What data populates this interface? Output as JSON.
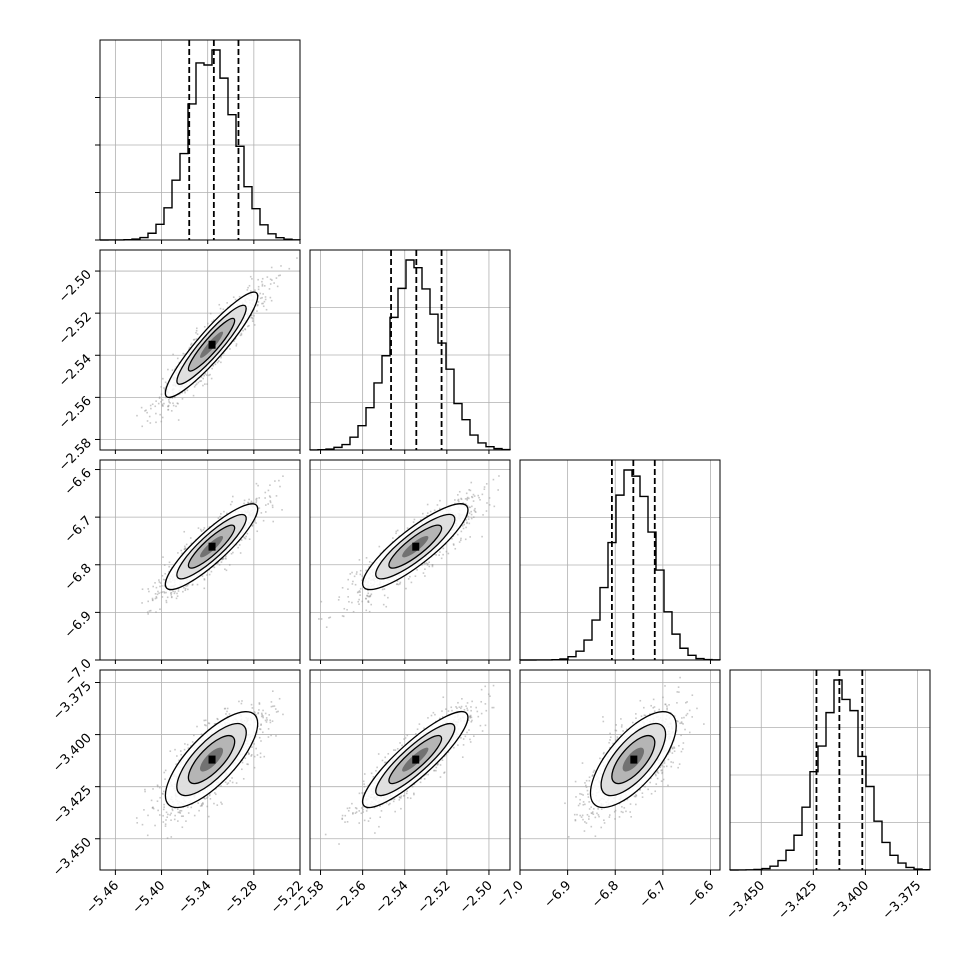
{
  "chart_data": {
    "type": "corner",
    "dimensions": 4,
    "ranges": [
      [
        -5.48,
        -5.22
      ],
      [
        -2.585,
        -2.49
      ],
      [
        -7.0,
        -6.58
      ],
      [
        -3.465,
        -3.369
      ]
    ],
    "tick_labels": [
      [
        "−5.46",
        "−5.40",
        "−5.34",
        "−5.28",
        "−5.22"
      ],
      [
        "−2.58",
        "−2.56",
        "−2.54",
        "−2.52",
        "−2.50"
      ],
      [
        "−7.0",
        "−6.9",
        "−6.8",
        "−6.7",
        "−6.6"
      ],
      [
        "−3.450",
        "−3.425",
        "−3.400",
        "−3.375"
      ]
    ],
    "tick_values": [
      [
        -5.46,
        -5.4,
        -5.34,
        -5.28,
        -5.22
      ],
      [
        -2.58,
        -2.56,
        -2.54,
        -2.52,
        -2.5
      ],
      [
        -7.0,
        -6.9,
        -6.8,
        -6.7,
        -6.6
      ],
      [
        -3.45,
        -3.425,
        -3.4,
        -3.375
      ]
    ],
    "means": [
      -5.335,
      -2.535,
      -6.762,
      -3.412
    ],
    "sigmas": [
      0.03,
      0.0125,
      0.045,
      0.0115
    ],
    "quantiles": [
      [
        -5.364,
        -5.332,
        -5.3
      ],
      [
        -2.5465,
        -2.5345,
        -2.5225
      ],
      [
        -6.807,
        -6.762,
        -6.717
      ],
      [
        -3.4235,
        -3.4125,
        -3.4015
      ]
    ],
    "correlations": [
      [
        1,
        0.92,
        0.88,
        0.75
      ],
      [
        0.92,
        1,
        0.86,
        0.88
      ],
      [
        0.88,
        0.86,
        1,
        0.7
      ],
      [
        0.75,
        0.88,
        0.7,
        1
      ]
    ],
    "histogram_bins": 25,
    "grid": true,
    "colors": {
      "line": "#000000",
      "points": "#9a9a9a",
      "density": "#000000"
    }
  }
}
